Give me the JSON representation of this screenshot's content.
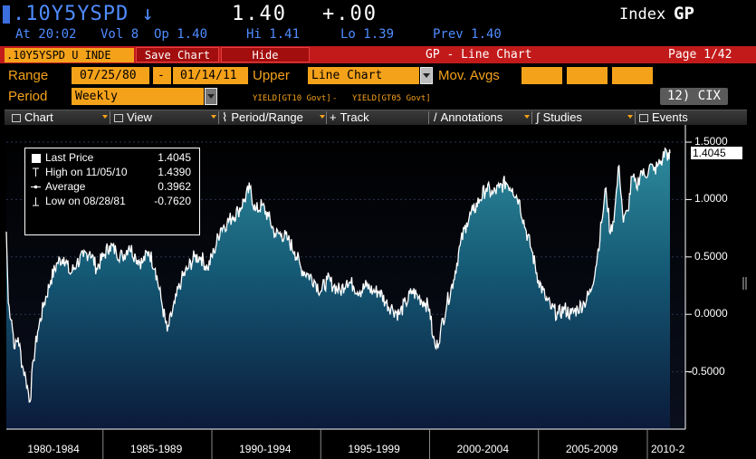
{
  "header": {
    "ticker": ".10Y5YSPD",
    "direction_icon": "down-arrow-icon",
    "last_price": "1.40",
    "net_change": "+.00",
    "index_label": "Index",
    "index_code": "GP"
  },
  "quote": {
    "time": "At 20:02",
    "volume": "Vol 8",
    "open": "Op 1.40",
    "high": "Hi 1.41",
    "low": "Lo 1.39",
    "prev": "Prev 1.40"
  },
  "bar": {
    "security": ".10Y5YSPD U INDE",
    "save_chart": "Save Chart",
    "hide": "Hide",
    "title": "GP - Line Chart",
    "page": "Page 1/42"
  },
  "controls": {
    "range_label": "Range",
    "start_date": "07/25/80",
    "range_sep": "-",
    "end_date": "01/14/11",
    "upper_label": "Upper",
    "upper_value": "Line Chart",
    "mov_avgs_label": "Mov. Avgs",
    "period_label": "Period",
    "period_value": "Weekly",
    "spread_leg1": "YIELD[GT10 Govt]",
    "spread_minus": "-",
    "spread_leg2": "YIELD[GT05 Govt]",
    "cix_button": "12)  CIX"
  },
  "toolbar": {
    "chart": "Chart",
    "view": "View",
    "period_range": "Period/Range",
    "track": "Track",
    "annotations": "Annotations",
    "studies": "Studies",
    "events": "Events"
  },
  "legend": {
    "last_price_label": "Last Price",
    "last_price_value": "1.4045",
    "high_label": "High on 11/05/10",
    "high_value": "1.4390",
    "average_label": "Average",
    "average_value": "0.3962",
    "low_label": "Low on 08/28/81",
    "low_value": "-0.7620"
  },
  "price_tag": "1.4045",
  "colors": {
    "accent_orange": "#f5a21b",
    "bar_red": "#c21a1a",
    "ticker_blue": "#4f8cff",
    "area_top": "#2e8a9c",
    "area_bottom": "#0b1a3a"
  },
  "chart_data": {
    "type": "area",
    "y_ticks": [
      "1.5000",
      "1.0000",
      "0.5000",
      "0.0000",
      "-0.5000"
    ],
    "ylim": [
      -1.0,
      1.65
    ],
    "x_labels": [
      "1980-1984",
      "1985-1989",
      "1990-1994",
      "1995-1999",
      "2000-2004",
      "2005-2009",
      "2010-2"
    ],
    "x_range": [
      1980.56,
      2011.04
    ],
    "grid": true,
    "series": [
      {
        "points": [
          [
            1980.56,
            0.72
          ],
          [
            1980.65,
            0.1
          ],
          [
            1980.8,
            -0.05
          ],
          [
            1980.95,
            -0.3
          ],
          [
            1981.1,
            -0.2
          ],
          [
            1981.3,
            -0.45
          ],
          [
            1981.45,
            -0.55
          ],
          [
            1981.65,
            -0.76
          ],
          [
            1981.8,
            -0.4
          ],
          [
            1982.0,
            -0.15
          ],
          [
            1982.3,
            0.1
          ],
          [
            1982.6,
            0.3
          ],
          [
            1982.9,
            0.45
          ],
          [
            1983.2,
            0.5
          ],
          [
            1983.5,
            0.35
          ],
          [
            1983.8,
            0.45
          ],
          [
            1984.1,
            0.5
          ],
          [
            1984.4,
            0.55
          ],
          [
            1984.7,
            0.4
          ],
          [
            1985.0,
            0.5
          ],
          [
            1985.3,
            0.6
          ],
          [
            1985.6,
            0.55
          ],
          [
            1985.9,
            0.5
          ],
          [
            1986.2,
            0.6
          ],
          [
            1986.5,
            0.5
          ],
          [
            1986.8,
            0.45
          ],
          [
            1987.1,
            0.55
          ],
          [
            1987.4,
            0.4
          ],
          [
            1987.7,
            0.1
          ],
          [
            1987.95,
            -0.15
          ],
          [
            1988.3,
            0.1
          ],
          [
            1988.6,
            0.3
          ],
          [
            1988.9,
            0.4
          ],
          [
            1989.2,
            0.5
          ],
          [
            1989.5,
            0.5
          ],
          [
            1989.8,
            0.4
          ],
          [
            1990.1,
            0.55
          ],
          [
            1990.4,
            0.75
          ],
          [
            1990.7,
            0.8
          ],
          [
            1990.95,
            0.85
          ],
          [
            1991.2,
            0.9
          ],
          [
            1991.5,
            1.0
          ],
          [
            1991.75,
            1.1
          ],
          [
            1992.0,
            0.9
          ],
          [
            1992.3,
            0.95
          ],
          [
            1992.6,
            0.85
          ],
          [
            1992.9,
            0.7
          ],
          [
            1993.2,
            0.7
          ],
          [
            1993.5,
            0.65
          ],
          [
            1993.8,
            0.55
          ],
          [
            1994.1,
            0.4
          ],
          [
            1994.4,
            0.35
          ],
          [
            1994.7,
            0.3
          ],
          [
            1995.0,
            0.2
          ],
          [
            1995.3,
            0.3
          ],
          [
            1995.6,
            0.25
          ],
          [
            1995.9,
            0.2
          ],
          [
            1996.2,
            0.3
          ],
          [
            1996.5,
            0.25
          ],
          [
            1996.8,
            0.2
          ],
          [
            1997.1,
            0.25
          ],
          [
            1997.4,
            0.2
          ],
          [
            1997.7,
            0.2
          ],
          [
            1998.0,
            0.1
          ],
          [
            1998.3,
            0.05
          ],
          [
            1998.6,
            0.0
          ],
          [
            1998.9,
            0.1
          ],
          [
            1999.2,
            0.2
          ],
          [
            1999.5,
            0.15
          ],
          [
            1999.8,
            0.1
          ],
          [
            2000.0,
            0.05
          ],
          [
            2000.15,
            -0.2
          ],
          [
            2000.3,
            -0.3
          ],
          [
            2000.5,
            -0.15
          ],
          [
            2000.8,
            0.1
          ],
          [
            2001.1,
            0.3
          ],
          [
            2001.4,
            0.6
          ],
          [
            2001.7,
            0.8
          ],
          [
            2002.0,
            0.9
          ],
          [
            2002.3,
            1.0
          ],
          [
            2002.6,
            1.1
          ],
          [
            2002.9,
            1.05
          ],
          [
            2003.2,
            1.1
          ],
          [
            2003.5,
            1.15
          ],
          [
            2003.8,
            1.1
          ],
          [
            2004.1,
            1.0
          ],
          [
            2004.4,
            0.75
          ],
          [
            2004.7,
            0.55
          ],
          [
            2005.0,
            0.3
          ],
          [
            2005.3,
            0.15
          ],
          [
            2005.6,
            0.05
          ],
          [
            2005.9,
            0.0
          ],
          [
            2006.2,
            0.05
          ],
          [
            2006.5,
            0.0
          ],
          [
            2006.8,
            0.05
          ],
          [
            2007.1,
            0.1
          ],
          [
            2007.4,
            0.2
          ],
          [
            2007.7,
            0.5
          ],
          [
            2007.9,
            0.8
          ],
          [
            2008.1,
            1.1
          ],
          [
            2008.3,
            0.7
          ],
          [
            2008.5,
            0.9
          ],
          [
            2008.7,
            1.3
          ],
          [
            2008.9,
            0.8
          ],
          [
            2009.1,
            0.9
          ],
          [
            2009.3,
            1.2
          ],
          [
            2009.5,
            1.1
          ],
          [
            2009.7,
            1.25
          ],
          [
            2009.9,
            1.2
          ],
          [
            2010.1,
            1.3
          ],
          [
            2010.3,
            1.25
          ],
          [
            2010.5,
            1.3
          ],
          [
            2010.7,
            1.35
          ],
          [
            2010.85,
            1.439
          ],
          [
            2011.0,
            1.35
          ],
          [
            2011.04,
            1.4045
          ]
        ]
      }
    ]
  }
}
